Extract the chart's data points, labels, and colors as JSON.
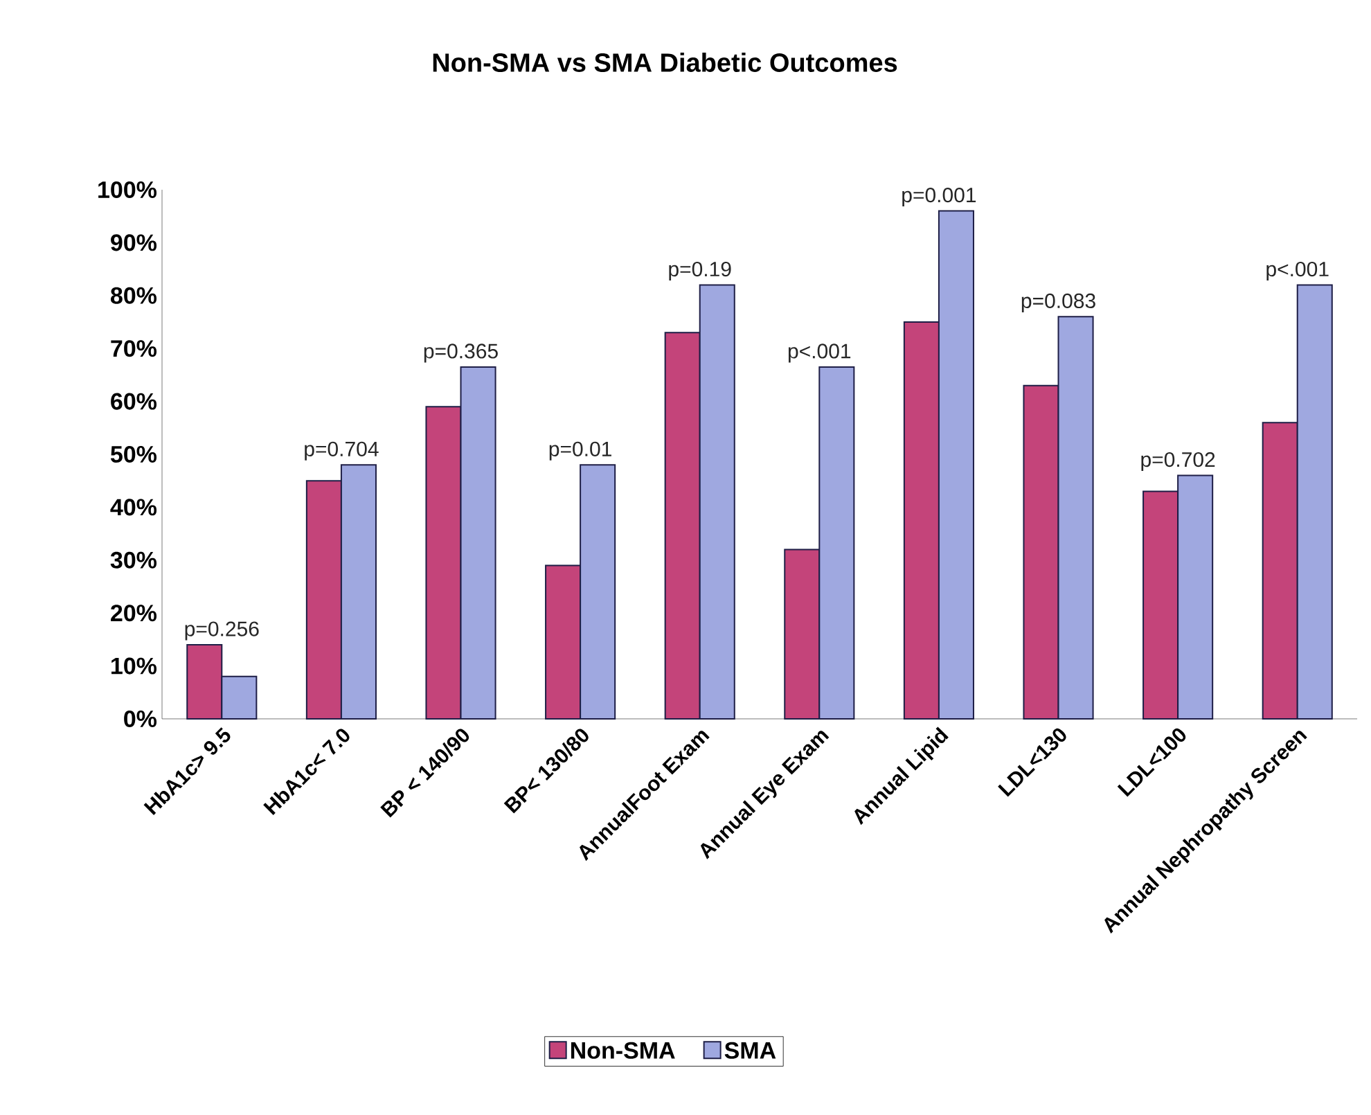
{
  "chart_data": {
    "type": "bar",
    "title": "Non-SMA vs SMA Diabetic Outcomes",
    "categories": [
      "HbA1c> 9.5",
      "HbA1c< 7.0",
      "BP < 140/90",
      "BP< 130/80",
      "AnnualFoot Exam",
      "Annual Eye Exam",
      "Annual Lipid",
      "LDL<130",
      "LDL<100",
      "Annual Nephropathy Screen"
    ],
    "series": [
      {
        "name": "Non-SMA",
        "color": "#c4447a",
        "values": [
          14,
          45,
          59,
          29,
          73,
          32,
          75,
          63,
          43,
          56
        ]
      },
      {
        "name": "SMA",
        "color": "#9fa8e0",
        "values": [
          8,
          48,
          66.5,
          48,
          82,
          66.5,
          96,
          76,
          46,
          82
        ]
      }
    ],
    "ylim": [
      0,
      100
    ],
    "yticks": [
      {
        "value": 0,
        "label": "0%"
      },
      {
        "value": 10,
        "label": "10%"
      },
      {
        "value": 20,
        "label": "20%"
      },
      {
        "value": 30,
        "label": "30%"
      },
      {
        "value": 40,
        "label": "40%"
      },
      {
        "value": 50,
        "label": "50%"
      },
      {
        "value": 60,
        "label": "60%"
      },
      {
        "value": 70,
        "label": "70%"
      },
      {
        "value": 80,
        "label": "80%"
      },
      {
        "value": 90,
        "label": "90%"
      },
      {
        "value": 100,
        "label": "100%"
      }
    ],
    "annotations": [
      {
        "text": "p=0.256",
        "x": "HbA1c> 9.5",
        "y": 14
      },
      {
        "text": "p=0.704",
        "x": "HbA1c< 7.0",
        "y": 48
      },
      {
        "text": "p=0.365",
        "x": "BP < 140/90",
        "y": 66.5
      },
      {
        "text": "p=0.01",
        "x": "BP< 130/80",
        "y": 48
      },
      {
        "text": "p=0.19",
        "x": "AnnualFoot Exam",
        "y": 82
      },
      {
        "text": "p<.001",
        "x": "Annual Eye Exam",
        "y": 66.5
      },
      {
        "text": "p=0.001",
        "x": "Annual Lipid",
        "y": 96
      },
      {
        "text": "p=0.083",
        "x": "LDL<130",
        "y": 76
      },
      {
        "text": "p=0.702",
        "x": "LDL<100",
        "y": 46
      },
      {
        "text": "p<.001",
        "x": "Annual Nephropathy Screen",
        "y": 82
      }
    ],
    "grid": false,
    "legend": "bottom"
  }
}
